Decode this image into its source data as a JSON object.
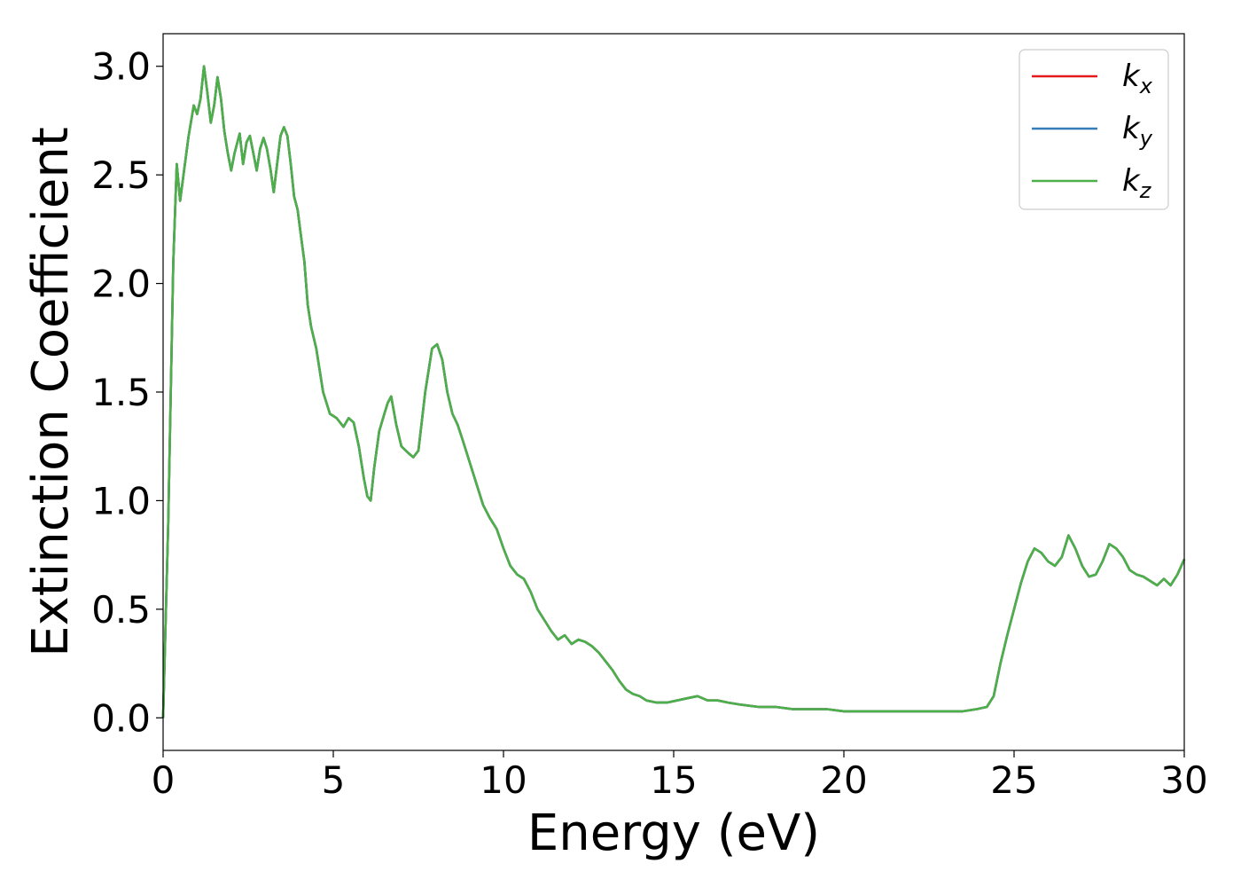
{
  "chart_data": {
    "type": "line",
    "title": "",
    "xlabel": "Energy (eV)",
    "ylabel": "Extinction Coefficient",
    "xlim": [
      0,
      30
    ],
    "ylim": [
      -0.15,
      3.15
    ],
    "xticks": [
      0,
      5,
      10,
      15,
      20,
      25,
      30
    ],
    "yticks": [
      0.0,
      0.5,
      1.0,
      1.5,
      2.0,
      2.5,
      3.0
    ],
    "xtick_labels": [
      "0",
      "5",
      "10",
      "15",
      "20",
      "25",
      "30"
    ],
    "ytick_labels": [
      "0.0",
      "0.5",
      "1.0",
      "1.5",
      "2.0",
      "2.5",
      "3.0"
    ],
    "grid": false,
    "legend_position": "top-right",
    "series": [
      {
        "name": "k",
        "subscript": "x",
        "color": "#e41a1c",
        "x": [
          0,
          0.15,
          0.3,
          0.4,
          0.5,
          0.6,
          0.75,
          0.9,
          1.0,
          1.1,
          1.2,
          1.3,
          1.4,
          1.5,
          1.6,
          1.7,
          1.8,
          1.9,
          2.0,
          2.1,
          2.25,
          2.35,
          2.45,
          2.55,
          2.65,
          2.75,
          2.85,
          2.95,
          3.05,
          3.15,
          3.25,
          3.35,
          3.45,
          3.55,
          3.65,
          3.75,
          3.85,
          3.95,
          4.05,
          4.15,
          4.25,
          4.35,
          4.5,
          4.7,
          4.9,
          5.1,
          5.3,
          5.45,
          5.6,
          5.75,
          5.9,
          6.0,
          6.1,
          6.2,
          6.35,
          6.5,
          6.6,
          6.7,
          6.85,
          7.0,
          7.2,
          7.35,
          7.5,
          7.7,
          7.9,
          8.05,
          8.2,
          8.35,
          8.5,
          8.65,
          8.8,
          9.0,
          9.2,
          9.4,
          9.6,
          9.8,
          10.0,
          10.2,
          10.4,
          10.6,
          10.8,
          11.0,
          11.2,
          11.4,
          11.6,
          11.8,
          12.0,
          12.2,
          12.4,
          12.6,
          12.8,
          13.0,
          13.2,
          13.4,
          13.6,
          13.8,
          14.0,
          14.2,
          14.5,
          14.8,
          15.1,
          15.4,
          15.7,
          16.0,
          16.3,
          16.6,
          17.0,
          17.5,
          18.0,
          18.5,
          19.0,
          19.5,
          20.0,
          20.5,
          21.0,
          21.5,
          22.0,
          22.5,
          23.0,
          23.5,
          23.9,
          24.2,
          24.4,
          24.6,
          24.8,
          25.0,
          25.2,
          25.4,
          25.6,
          25.8,
          26.0,
          26.2,
          26.4,
          26.6,
          26.8,
          27.0,
          27.2,
          27.4,
          27.6,
          27.8,
          28.0,
          28.2,
          28.4,
          28.6,
          28.8,
          29.0,
          29.2,
          29.4,
          29.6,
          29.8,
          30.0
        ],
        "y": [
          0.0,
          0.9,
          2.1,
          2.55,
          2.38,
          2.5,
          2.68,
          2.82,
          2.78,
          2.85,
          3.0,
          2.88,
          2.74,
          2.82,
          2.95,
          2.85,
          2.7,
          2.6,
          2.52,
          2.6,
          2.69,
          2.55,
          2.65,
          2.68,
          2.6,
          2.52,
          2.62,
          2.67,
          2.62,
          2.53,
          2.42,
          2.55,
          2.68,
          2.72,
          2.68,
          2.55,
          2.4,
          2.34,
          2.22,
          2.1,
          1.9,
          1.8,
          1.7,
          1.5,
          1.4,
          1.38,
          1.34,
          1.38,
          1.36,
          1.25,
          1.1,
          1.02,
          1.0,
          1.15,
          1.32,
          1.4,
          1.45,
          1.48,
          1.35,
          1.25,
          1.22,
          1.2,
          1.23,
          1.5,
          1.7,
          1.72,
          1.65,
          1.5,
          1.4,
          1.35,
          1.28,
          1.18,
          1.08,
          0.98,
          0.92,
          0.87,
          0.78,
          0.7,
          0.66,
          0.64,
          0.58,
          0.5,
          0.45,
          0.4,
          0.36,
          0.38,
          0.34,
          0.36,
          0.35,
          0.33,
          0.3,
          0.26,
          0.22,
          0.17,
          0.13,
          0.11,
          0.1,
          0.08,
          0.07,
          0.07,
          0.08,
          0.09,
          0.1,
          0.08,
          0.08,
          0.07,
          0.06,
          0.05,
          0.05,
          0.04,
          0.04,
          0.04,
          0.03,
          0.03,
          0.03,
          0.03,
          0.03,
          0.03,
          0.03,
          0.03,
          0.04,
          0.05,
          0.1,
          0.25,
          0.38,
          0.5,
          0.62,
          0.72,
          0.78,
          0.76,
          0.72,
          0.7,
          0.74,
          0.84,
          0.78,
          0.7,
          0.65,
          0.66,
          0.72,
          0.8,
          0.78,
          0.74,
          0.68,
          0.66,
          0.65,
          0.63,
          0.61,
          0.64,
          0.61,
          0.66,
          0.73
        ]
      },
      {
        "name": "k",
        "subscript": "y",
        "color": "#377eb8",
        "x": [
          0,
          0.15,
          0.3,
          0.4,
          0.5,
          0.6,
          0.75,
          0.9,
          1.0,
          1.1,
          1.2,
          1.3,
          1.4,
          1.5,
          1.6,
          1.7,
          1.8,
          1.9,
          2.0,
          2.1,
          2.25,
          2.35,
          2.45,
          2.55,
          2.65,
          2.75,
          2.85,
          2.95,
          3.05,
          3.15,
          3.25,
          3.35,
          3.45,
          3.55,
          3.65,
          3.75,
          3.85,
          3.95,
          4.05,
          4.15,
          4.25,
          4.35,
          4.5,
          4.7,
          4.9,
          5.1,
          5.3,
          5.45,
          5.6,
          5.75,
          5.9,
          6.0,
          6.1,
          6.2,
          6.35,
          6.5,
          6.6,
          6.7,
          6.85,
          7.0,
          7.2,
          7.35,
          7.5,
          7.7,
          7.9,
          8.05,
          8.2,
          8.35,
          8.5,
          8.65,
          8.8,
          9.0,
          9.2,
          9.4,
          9.6,
          9.8,
          10.0,
          10.2,
          10.4,
          10.6,
          10.8,
          11.0,
          11.2,
          11.4,
          11.6,
          11.8,
          12.0,
          12.2,
          12.4,
          12.6,
          12.8,
          13.0,
          13.2,
          13.4,
          13.6,
          13.8,
          14.0,
          14.2,
          14.5,
          14.8,
          15.1,
          15.4,
          15.7,
          16.0,
          16.3,
          16.6,
          17.0,
          17.5,
          18.0,
          18.5,
          19.0,
          19.5,
          20.0,
          20.5,
          21.0,
          21.5,
          22.0,
          22.5,
          23.0,
          23.5,
          23.9,
          24.2,
          24.4,
          24.6,
          24.8,
          25.0,
          25.2,
          25.4,
          25.6,
          25.8,
          26.0,
          26.2,
          26.4,
          26.6,
          26.8,
          27.0,
          27.2,
          27.4,
          27.6,
          27.8,
          28.0,
          28.2,
          28.4,
          28.6,
          28.8,
          29.0,
          29.2,
          29.4,
          29.6,
          29.8,
          30.0
        ],
        "y": [
          0.0,
          0.9,
          2.1,
          2.55,
          2.38,
          2.5,
          2.68,
          2.82,
          2.78,
          2.85,
          3.0,
          2.88,
          2.74,
          2.82,
          2.95,
          2.85,
          2.7,
          2.6,
          2.52,
          2.6,
          2.69,
          2.55,
          2.65,
          2.68,
          2.6,
          2.52,
          2.62,
          2.67,
          2.62,
          2.53,
          2.42,
          2.55,
          2.68,
          2.72,
          2.68,
          2.55,
          2.4,
          2.34,
          2.22,
          2.1,
          1.9,
          1.8,
          1.7,
          1.5,
          1.4,
          1.38,
          1.34,
          1.38,
          1.36,
          1.25,
          1.1,
          1.02,
          1.0,
          1.15,
          1.32,
          1.4,
          1.45,
          1.48,
          1.35,
          1.25,
          1.22,
          1.2,
          1.23,
          1.5,
          1.7,
          1.72,
          1.65,
          1.5,
          1.4,
          1.35,
          1.28,
          1.18,
          1.08,
          0.98,
          0.92,
          0.87,
          0.78,
          0.7,
          0.66,
          0.64,
          0.58,
          0.5,
          0.45,
          0.4,
          0.36,
          0.38,
          0.34,
          0.36,
          0.35,
          0.33,
          0.3,
          0.26,
          0.22,
          0.17,
          0.13,
          0.11,
          0.1,
          0.08,
          0.07,
          0.07,
          0.08,
          0.09,
          0.1,
          0.08,
          0.08,
          0.07,
          0.06,
          0.05,
          0.05,
          0.04,
          0.04,
          0.04,
          0.03,
          0.03,
          0.03,
          0.03,
          0.03,
          0.03,
          0.03,
          0.03,
          0.04,
          0.05,
          0.1,
          0.25,
          0.38,
          0.5,
          0.62,
          0.72,
          0.78,
          0.76,
          0.72,
          0.7,
          0.74,
          0.84,
          0.78,
          0.7,
          0.65,
          0.66,
          0.72,
          0.8,
          0.78,
          0.74,
          0.68,
          0.66,
          0.65,
          0.63,
          0.61,
          0.64,
          0.61,
          0.66,
          0.73
        ]
      },
      {
        "name": "k",
        "subscript": "z",
        "color": "#4daf4a",
        "x": [
          0,
          0.15,
          0.3,
          0.4,
          0.5,
          0.6,
          0.75,
          0.9,
          1.0,
          1.1,
          1.2,
          1.3,
          1.4,
          1.5,
          1.6,
          1.7,
          1.8,
          1.9,
          2.0,
          2.1,
          2.25,
          2.35,
          2.45,
          2.55,
          2.65,
          2.75,
          2.85,
          2.95,
          3.05,
          3.15,
          3.25,
          3.35,
          3.45,
          3.55,
          3.65,
          3.75,
          3.85,
          3.95,
          4.05,
          4.15,
          4.25,
          4.35,
          4.5,
          4.7,
          4.9,
          5.1,
          5.3,
          5.45,
          5.6,
          5.75,
          5.9,
          6.0,
          6.1,
          6.2,
          6.35,
          6.5,
          6.6,
          6.7,
          6.85,
          7.0,
          7.2,
          7.35,
          7.5,
          7.7,
          7.9,
          8.05,
          8.2,
          8.35,
          8.5,
          8.65,
          8.8,
          9.0,
          9.2,
          9.4,
          9.6,
          9.8,
          10.0,
          10.2,
          10.4,
          10.6,
          10.8,
          11.0,
          11.2,
          11.4,
          11.6,
          11.8,
          12.0,
          12.2,
          12.4,
          12.6,
          12.8,
          13.0,
          13.2,
          13.4,
          13.6,
          13.8,
          14.0,
          14.2,
          14.5,
          14.8,
          15.1,
          15.4,
          15.7,
          16.0,
          16.3,
          16.6,
          17.0,
          17.5,
          18.0,
          18.5,
          19.0,
          19.5,
          20.0,
          20.5,
          21.0,
          21.5,
          22.0,
          22.5,
          23.0,
          23.5,
          23.9,
          24.2,
          24.4,
          24.6,
          24.8,
          25.0,
          25.2,
          25.4,
          25.6,
          25.8,
          26.0,
          26.2,
          26.4,
          26.6,
          26.8,
          27.0,
          27.2,
          27.4,
          27.6,
          27.8,
          28.0,
          28.2,
          28.4,
          28.6,
          28.8,
          29.0,
          29.2,
          29.4,
          29.6,
          29.8,
          30.0
        ],
        "y": [
          0.0,
          0.9,
          2.1,
          2.55,
          2.38,
          2.5,
          2.68,
          2.82,
          2.78,
          2.85,
          3.0,
          2.88,
          2.74,
          2.82,
          2.95,
          2.85,
          2.7,
          2.6,
          2.52,
          2.6,
          2.69,
          2.55,
          2.65,
          2.68,
          2.6,
          2.52,
          2.62,
          2.67,
          2.62,
          2.53,
          2.42,
          2.55,
          2.68,
          2.72,
          2.68,
          2.55,
          2.4,
          2.34,
          2.22,
          2.1,
          1.9,
          1.8,
          1.7,
          1.5,
          1.4,
          1.38,
          1.34,
          1.38,
          1.36,
          1.25,
          1.1,
          1.02,
          1.0,
          1.15,
          1.32,
          1.4,
          1.45,
          1.48,
          1.35,
          1.25,
          1.22,
          1.2,
          1.23,
          1.5,
          1.7,
          1.72,
          1.65,
          1.5,
          1.4,
          1.35,
          1.28,
          1.18,
          1.08,
          0.98,
          0.92,
          0.87,
          0.78,
          0.7,
          0.66,
          0.64,
          0.58,
          0.5,
          0.45,
          0.4,
          0.36,
          0.38,
          0.34,
          0.36,
          0.35,
          0.33,
          0.3,
          0.26,
          0.22,
          0.17,
          0.13,
          0.11,
          0.1,
          0.08,
          0.07,
          0.07,
          0.08,
          0.09,
          0.1,
          0.08,
          0.08,
          0.07,
          0.06,
          0.05,
          0.05,
          0.04,
          0.04,
          0.04,
          0.03,
          0.03,
          0.03,
          0.03,
          0.03,
          0.03,
          0.03,
          0.03,
          0.04,
          0.05,
          0.1,
          0.25,
          0.38,
          0.5,
          0.62,
          0.72,
          0.78,
          0.76,
          0.72,
          0.7,
          0.74,
          0.84,
          0.78,
          0.7,
          0.65,
          0.66,
          0.72,
          0.8,
          0.78,
          0.74,
          0.68,
          0.66,
          0.65,
          0.63,
          0.61,
          0.64,
          0.61,
          0.66,
          0.73
        ]
      }
    ]
  }
}
